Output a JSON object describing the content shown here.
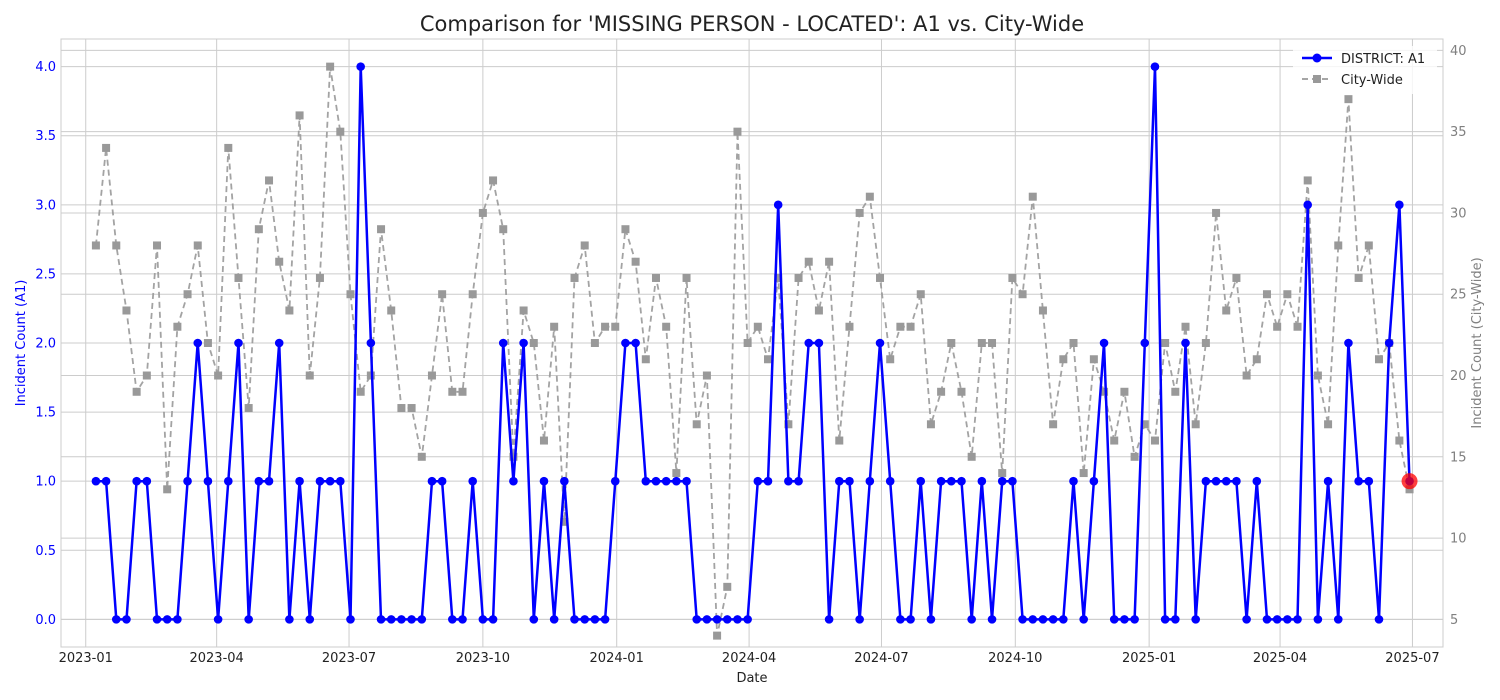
{
  "chart_data": {
    "type": "line",
    "title": "Comparison for 'MISSING PERSON - LOCATED': A1 vs. City-Wide",
    "xlabel": "Date",
    "ylabel_left": "Incident Count (A1)",
    "ylabel_right": "Incident Count (City-Wide)",
    "x_ticks": [
      "2023-01",
      "2023-04",
      "2023-07",
      "2023-10",
      "2024-01",
      "2024-04",
      "2024-07",
      "2024-10",
      "2025-01",
      "2025-04",
      "2025-07"
    ],
    "y_ticks_left": [
      "0.0",
      "0.5",
      "1.0",
      "1.5",
      "2.0",
      "2.5",
      "3.0",
      "3.5",
      "4.0"
    ],
    "y_ticks_right": [
      "5",
      "10",
      "15",
      "20",
      "25",
      "30",
      "35",
      "40"
    ],
    "ylim_left": [
      -0.2,
      4.2
    ],
    "ylim_right": [
      3.3,
      40.7
    ],
    "xlim": [
      "2022-12-15",
      "2025-07-22"
    ],
    "start_week": "2023-01-08",
    "grid": true,
    "legend_position": "top-right",
    "series": [
      {
        "name": "DISTRICT: A1",
        "axis": "left",
        "color": "#0000ff",
        "marker": "circle",
        "line_style": "solid",
        "values": [
          1,
          1,
          0,
          0,
          1,
          1,
          0,
          0,
          0,
          1,
          2,
          1,
          0,
          1,
          2,
          0,
          1,
          1,
          2,
          0,
          1,
          0,
          1,
          1,
          1,
          0,
          4,
          2,
          0,
          0,
          0,
          0,
          0,
          1,
          1,
          0,
          0,
          1,
          0,
          0,
          2,
          1,
          2,
          0,
          1,
          0,
          1,
          0,
          0,
          0,
          0,
          1,
          2,
          2,
          1,
          1,
          1,
          1,
          1,
          0,
          0,
          0,
          0,
          0,
          0,
          1,
          1,
          3,
          1,
          1,
          2,
          2,
          0,
          1,
          1,
          0,
          1,
          2,
          1,
          0,
          0,
          1,
          0,
          1,
          1,
          1,
          0,
          1,
          0,
          1,
          1,
          0,
          0,
          0,
          0,
          0,
          1,
          0,
          1,
          2,
          0,
          0,
          0,
          2,
          4,
          0,
          0,
          2,
          0,
          1,
          1,
          1,
          1,
          0,
          1,
          0,
          0,
          0,
          0,
          3,
          0,
          1,
          0,
          2,
          1,
          1,
          0,
          2,
          3,
          1
        ]
      },
      {
        "name": "City-Wide",
        "axis": "right",
        "color": "#999999",
        "marker": "square",
        "line_style": "dashed",
        "values": [
          28,
          34,
          28,
          24,
          19,
          20,
          28,
          13,
          23,
          25,
          28,
          22,
          20,
          34,
          26,
          18,
          29,
          32,
          27,
          24,
          36,
          20,
          26,
          39,
          35,
          25,
          19,
          20,
          29,
          24,
          18,
          18,
          15,
          20,
          25,
          19,
          19,
          25,
          30,
          32,
          29,
          15,
          24,
          22,
          16,
          23,
          11,
          26,
          28,
          22,
          23,
          23,
          29,
          27,
          21,
          26,
          23,
          14,
          26,
          17,
          20,
          4,
          7,
          35,
          22,
          23,
          21,
          26,
          17,
          26,
          27,
          24,
          27,
          16,
          23,
          30,
          31,
          26,
          21,
          23,
          23,
          25,
          17,
          19,
          22,
          19,
          15,
          22,
          22,
          14,
          26,
          25,
          31,
          24,
          17,
          21,
          22,
          14,
          21,
          19,
          16,
          19,
          15,
          17,
          16,
          22,
          19,
          23,
          17,
          22,
          30,
          24,
          26,
          20,
          21,
          25,
          23,
          25,
          23,
          32,
          20,
          17,
          28,
          37,
          26,
          28,
          21,
          22,
          16,
          13
        ]
      }
    ],
    "highlight": {
      "series": "DISTRICT: A1",
      "index": 129,
      "color": "#ff0000"
    }
  }
}
